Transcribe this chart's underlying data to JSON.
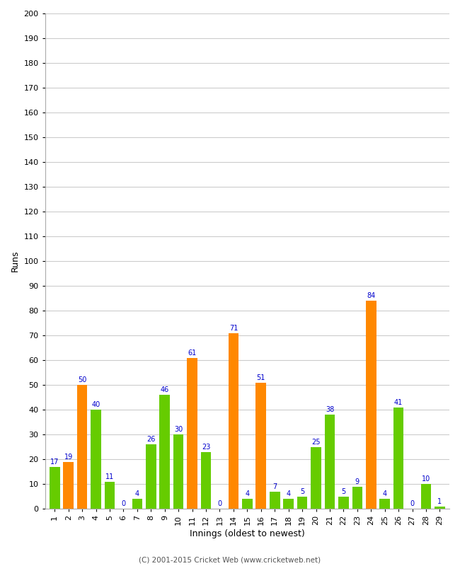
{
  "xlabel": "Innings (oldest to newest)",
  "ylabel": "Runs",
  "values": [
    17,
    19,
    50,
    40,
    11,
    0,
    4,
    26,
    46,
    30,
    61,
    23,
    0,
    71,
    4,
    51,
    7,
    4,
    5,
    25,
    38,
    5,
    9,
    84,
    4,
    41,
    0,
    10,
    1
  ],
  "colors": [
    "#66cc00",
    "#ff8800",
    "#ff8800",
    "#66cc00",
    "#66cc00",
    "#66cc00",
    "#66cc00",
    "#66cc00",
    "#66cc00",
    "#66cc00",
    "#ff8800",
    "#66cc00",
    "#66cc00",
    "#ff8800",
    "#66cc00",
    "#ff8800",
    "#66cc00",
    "#66cc00",
    "#66cc00",
    "#66cc00",
    "#66cc00",
    "#66cc00",
    "#66cc00",
    "#ff8800",
    "#66cc00",
    "#66cc00",
    "#66cc00",
    "#66cc00",
    "#66cc00"
  ],
  "labels": [
    "1",
    "2",
    "3",
    "4",
    "5",
    "6",
    "7",
    "8",
    "9",
    "10",
    "11",
    "12",
    "13",
    "14",
    "15",
    "16",
    "17",
    "18",
    "19",
    "20",
    "21",
    "22",
    "23",
    "24",
    "25",
    "26",
    "27",
    "28",
    "29"
  ],
  "ylim": [
    0,
    200
  ],
  "yticks": [
    0,
    10,
    20,
    30,
    40,
    50,
    60,
    70,
    80,
    90,
    100,
    110,
    120,
    130,
    140,
    150,
    160,
    170,
    180,
    190,
    200
  ],
  "background_color": "#ffffff",
  "grid_color": "#cccccc",
  "label_color": "#0000cc",
  "footer": "(C) 2001-2015 Cricket Web (www.cricketweb.net)"
}
